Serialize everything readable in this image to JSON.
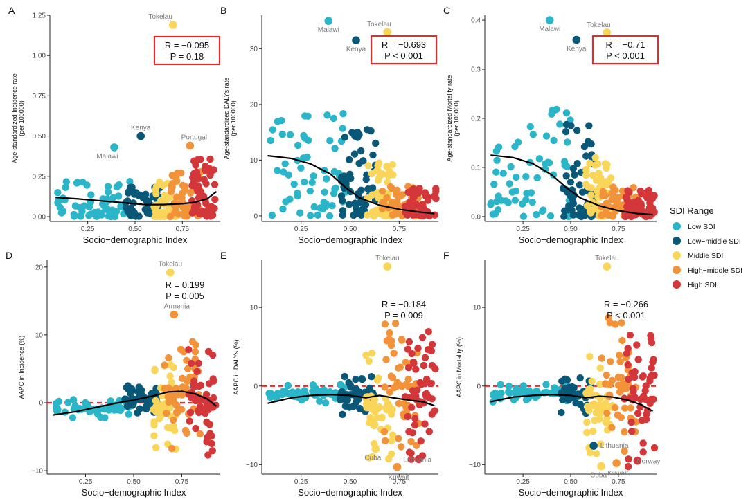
{
  "sdi_colors": {
    "Low SDI": "#2bb5c9",
    "Low−middle SDI": "#0a5878",
    "Middle SDI": "#f9d55a",
    "High−middle SDI": "#f39339",
    "High SDI": "#d3373a"
  },
  "legend": {
    "title": "SDI Range",
    "items": [
      "Low SDI",
      "Low−middle SDI",
      "Middle SDI",
      "High−middle SDI",
      "High SDI"
    ]
  },
  "chart_data": [
    {
      "panel": "A",
      "type": "scatter",
      "xlabel": "Socio−demographic Index",
      "ylabel": [
        "Age-standardized Incidence rate",
        "(per 100000)"
      ],
      "xlim": [
        0.05,
        0.95
      ],
      "ylim": [
        -0.03,
        1.25
      ],
      "xticks": [
        0.25,
        0.5,
        0.75
      ],
      "xtick_labels": [
        "0.25",
        "0.50",
        "0.75"
      ],
      "yticks": [
        0,
        0.25,
        0.5,
        0.75,
        1.0,
        1.25
      ],
      "ytick_labels": [
        "0.00",
        "0.25",
        "0.50",
        "0.75",
        "1.00",
        "1.25"
      ],
      "stats": [
        "R = −0.095",
        "P = 0.18"
      ],
      "stats_boxed": true,
      "baseline": null,
      "trend": [
        [
          0.08,
          0.12
        ],
        [
          0.2,
          0.11
        ],
        [
          0.35,
          0.095
        ],
        [
          0.45,
          0.085
        ],
        [
          0.55,
          0.075
        ],
        [
          0.65,
          0.075
        ],
        [
          0.75,
          0.08
        ],
        [
          0.82,
          0.09
        ],
        [
          0.88,
          0.11
        ],
        [
          0.93,
          0.155
        ]
      ],
      "highlight": [
        {
          "label": "Tokelau",
          "x": 0.7,
          "y": 1.19,
          "cat": "Middle SDI"
        },
        {
          "label": "Kenya",
          "x": 0.53,
          "y": 0.5,
          "cat": "Low−middle SDI"
        },
        {
          "label": "Malawi",
          "x": 0.39,
          "y": 0.43,
          "cat": "Low SDI"
        },
        {
          "label": "Portugal",
          "x": 0.79,
          "y": 0.44,
          "cat": "High−middle SDI"
        }
      ],
      "clusters": [
        {
          "cat": "Low SDI",
          "x": [
            0.08,
            0.48
          ],
          "y": [
            0.0,
            0.22
          ],
          "n": 60
        },
        {
          "cat": "Low−middle SDI",
          "x": [
            0.45,
            0.63
          ],
          "y": [
            0.0,
            0.2
          ],
          "n": 55
        },
        {
          "cat": "Middle SDI",
          "x": [
            0.6,
            0.72
          ],
          "y": [
            0.0,
            0.22
          ],
          "n": 50
        },
        {
          "cat": "High−middle SDI",
          "x": [
            0.68,
            0.85
          ],
          "y": [
            0.0,
            0.28
          ],
          "n": 50
        },
        {
          "cat": "High SDI",
          "x": [
            0.8,
            0.93
          ],
          "y": [
            0.0,
            0.36
          ],
          "n": 55
        }
      ]
    },
    {
      "panel": "B",
      "type": "scatter",
      "xlabel": "Socio−demographic Index",
      "ylabel": [
        "Age-standardized DALYs rate",
        "(per 100000)"
      ],
      "xlim": [
        0.05,
        0.95
      ],
      "ylim": [
        -1,
        36
      ],
      "xticks": [
        0.25,
        0.5,
        0.75
      ],
      "xtick_labels": [
        "0.25",
        "0.50",
        "0.75"
      ],
      "yticks": [
        0,
        10,
        20,
        30
      ],
      "ytick_labels": [
        "0",
        "10",
        "20",
        "30"
      ],
      "stats": [
        "R = −0.693",
        "P < 0.001"
      ],
      "stats_boxed": true,
      "baseline": null,
      "trend": [
        [
          0.08,
          10.8
        ],
        [
          0.2,
          10.3
        ],
        [
          0.3,
          9.3
        ],
        [
          0.4,
          7.5
        ],
        [
          0.48,
          5.0
        ],
        [
          0.55,
          3.2
        ],
        [
          0.65,
          1.9
        ],
        [
          0.75,
          1.2
        ],
        [
          0.85,
          0.7
        ],
        [
          0.93,
          0.4
        ]
      ],
      "highlight": [
        {
          "label": "Malawi",
          "x": 0.39,
          "y": 35.0,
          "cat": "Low SDI"
        },
        {
          "label": "Tokelau",
          "x": 0.69,
          "y": 33.0,
          "cat": "Middle SDI"
        },
        {
          "label": "Kenya",
          "x": 0.53,
          "y": 31.5,
          "cat": "Low−middle SDI"
        }
      ],
      "clusters": [
        {
          "cat": "Low SDI",
          "x": [
            0.08,
            0.5
          ],
          "y": [
            0.0,
            19
          ],
          "n": 60
        },
        {
          "cat": "Low−middle SDI",
          "x": [
            0.45,
            0.63
          ],
          "y": [
            0.0,
            16
          ],
          "n": 55
        },
        {
          "cat": "Middle SDI",
          "x": [
            0.58,
            0.72
          ],
          "y": [
            0.0,
            10
          ],
          "n": 50
        },
        {
          "cat": "High−middle SDI",
          "x": [
            0.66,
            0.85
          ],
          "y": [
            0.0,
            5.5
          ],
          "n": 50
        },
        {
          "cat": "High SDI",
          "x": [
            0.78,
            0.94
          ],
          "y": [
            0.0,
            5
          ],
          "n": 55
        }
      ]
    },
    {
      "panel": "C",
      "type": "scatter",
      "xlabel": "Socio−demographic Index",
      "ylabel": [
        "Age-standardized Mortality rate",
        "(per 100000)"
      ],
      "xlim": [
        0.05,
        0.95
      ],
      "ylim": [
        -0.01,
        0.41
      ],
      "xticks": [
        0.25,
        0.5,
        0.75
      ],
      "xtick_labels": [
        "0.25",
        "0.50",
        "0.75"
      ],
      "yticks": [
        0,
        0.1,
        0.2,
        0.3,
        0.4
      ],
      "ytick_labels": [
        "0.0",
        "0.1",
        "0.2",
        "0.3",
        "0.4"
      ],
      "stats": [
        "R = −0.71",
        "P < 0.001"
      ],
      "stats_boxed": true,
      "baseline": null,
      "trend": [
        [
          0.08,
          0.125
        ],
        [
          0.2,
          0.12
        ],
        [
          0.3,
          0.108
        ],
        [
          0.4,
          0.085
        ],
        [
          0.48,
          0.058
        ],
        [
          0.55,
          0.038
        ],
        [
          0.65,
          0.022
        ],
        [
          0.75,
          0.012
        ],
        [
          0.85,
          0.006
        ],
        [
          0.93,
          0.004
        ]
      ],
      "highlight": [
        {
          "label": "Malawi",
          "x": 0.39,
          "y": 0.4,
          "cat": "Low SDI"
        },
        {
          "label": "Tokelau",
          "x": 0.69,
          "y": 0.375,
          "cat": "Middle SDI"
        },
        {
          "label": "Kenya",
          "x": 0.53,
          "y": 0.36,
          "cat": "Low−middle SDI"
        }
      ],
      "clusters": [
        {
          "cat": "Low SDI",
          "x": [
            0.08,
            0.5
          ],
          "y": [
            0.0,
            0.22
          ],
          "n": 60
        },
        {
          "cat": "Low−middle SDI",
          "x": [
            0.45,
            0.63
          ],
          "y": [
            0.0,
            0.19
          ],
          "n": 55
        },
        {
          "cat": "Middle SDI",
          "x": [
            0.58,
            0.72
          ],
          "y": [
            0.0,
            0.12
          ],
          "n": 50
        },
        {
          "cat": "High−middle SDI",
          "x": [
            0.66,
            0.85
          ],
          "y": [
            0.0,
            0.06
          ],
          "n": 50
        },
        {
          "cat": "High SDI",
          "x": [
            0.78,
            0.94
          ],
          "y": [
            0.0,
            0.055
          ],
          "n": 55
        }
      ]
    },
    {
      "panel": "D",
      "type": "scatter",
      "xlabel": "Socio−demographic Index",
      "ylabel": [
        "AAPC in Incidence (%)"
      ],
      "xlim": [
        0.05,
        0.95
      ],
      "ylim": [
        -10.5,
        21
      ],
      "xticks": [
        0.25,
        0.5,
        0.75
      ],
      "xtick_labels": [
        "0.25",
        "0.50",
        "0.75"
      ],
      "yticks": [
        -10,
        0,
        10,
        20
      ],
      "ytick_labels": [
        "−10",
        "0",
        "10",
        "20"
      ],
      "stats": [
        "R = 0.199",
        "P = 0.005"
      ],
      "stats_boxed": false,
      "baseline": 0,
      "trend": [
        [
          0.08,
          -1.8
        ],
        [
          0.2,
          -1.3
        ],
        [
          0.3,
          -0.7
        ],
        [
          0.4,
          -0.1
        ],
        [
          0.5,
          0.4
        ],
        [
          0.6,
          1.0
        ],
        [
          0.68,
          1.6
        ],
        [
          0.75,
          1.7
        ],
        [
          0.82,
          1.3
        ],
        [
          0.88,
          0.6
        ],
        [
          0.93,
          -0.5
        ]
      ],
      "highlight": [
        {
          "label": "Tokelau",
          "x": 0.69,
          "y": 19.2,
          "cat": "Middle SDI"
        },
        {
          "label": "Armenia",
          "x": 0.71,
          "y": 13.0,
          "cat": "High−middle SDI"
        }
      ],
      "clusters": [
        {
          "cat": "Low SDI",
          "x": [
            0.08,
            0.48
          ],
          "y": [
            -2.3,
            0.5
          ],
          "n": 60
        },
        {
          "cat": "Low−middle SDI",
          "x": [
            0.45,
            0.63
          ],
          "y": [
            -1.5,
            2.5
          ],
          "n": 55
        },
        {
          "cat": "Middle SDI",
          "x": [
            0.6,
            0.72
          ],
          "y": [
            -8,
            6
          ],
          "n": 50
        },
        {
          "cat": "High−middle SDI",
          "x": [
            0.66,
            0.85
          ],
          "y": [
            -7,
            9.3
          ],
          "n": 50
        },
        {
          "cat": "High SDI",
          "x": [
            0.78,
            0.93
          ],
          "y": [
            -8,
            8.6
          ],
          "n": 55
        }
      ]
    },
    {
      "panel": "E",
      "type": "scatter",
      "xlabel": "Socio−demographic Index",
      "ylabel": [
        "AAPC in DALYs (%)"
      ],
      "xlim": [
        0.05,
        0.95
      ],
      "ylim": [
        -11.2,
        16
      ],
      "xticks": [
        0.25,
        0.5,
        0.75
      ],
      "xtick_labels": [
        "0.25",
        "0.50",
        "0.75"
      ],
      "yticks": [
        -10,
        0,
        10
      ],
      "ytick_labels": [
        "−10",
        "0",
        "10"
      ],
      "stats": [
        "R = −0.184",
        "P = 0.009"
      ],
      "stats_boxed": false,
      "baseline": 0,
      "trend": [
        [
          0.08,
          -2.2
        ],
        [
          0.2,
          -1.5
        ],
        [
          0.3,
          -1.2
        ],
        [
          0.4,
          -1.1
        ],
        [
          0.5,
          -1.2
        ],
        [
          0.58,
          -1.5
        ],
        [
          0.65,
          -1.2
        ],
        [
          0.72,
          -1.5
        ],
        [
          0.8,
          -1.8
        ],
        [
          0.87,
          -2.0
        ],
        [
          0.93,
          -2.5
        ]
      ],
      "highlight": [
        {
          "label": "Tokelau",
          "x": 0.69,
          "y": 15.2,
          "cat": "Middle SDI"
        },
        {
          "label": "Cuba",
          "x": 0.63,
          "y": -8.0,
          "cat": "Middle SDI"
        },
        {
          "label": "Lithuania",
          "x": 0.85,
          "y": -9.3,
          "cat": "High SDI"
        },
        {
          "label": "Kuwait",
          "x": 0.74,
          "y": -10.3,
          "cat": "High−middle SDI"
        }
      ],
      "clusters": [
        {
          "cat": "Low SDI",
          "x": [
            0.08,
            0.48
          ],
          "y": [
            -2.3,
            0.4
          ],
          "n": 60
        },
        {
          "cat": "Low−middle SDI",
          "x": [
            0.45,
            0.62
          ],
          "y": [
            -3.7,
            1.5
          ],
          "n": 55
        },
        {
          "cat": "Middle SDI",
          "x": [
            0.58,
            0.72
          ],
          "y": [
            -10.2,
            4.7
          ],
          "n": 50
        },
        {
          "cat": "High−middle SDI",
          "x": [
            0.66,
            0.85
          ],
          "y": [
            -9.8,
            9.7
          ],
          "n": 50
        },
        {
          "cat": "High SDI",
          "x": [
            0.78,
            0.94
          ],
          "y": [
            -10.3,
            7.3
          ],
          "n": 55
        }
      ]
    },
    {
      "panel": "F",
      "type": "scatter",
      "xlabel": "Socio−demographic Index",
      "ylabel": [
        "AAPC in Mortality (%)"
      ],
      "xlim": [
        0.05,
        0.95
      ],
      "ylim": [
        -11.2,
        16
      ],
      "xticks": [
        0.25,
        0.5,
        0.75
      ],
      "xtick_labels": [
        "0.25",
        "0.50",
        "0.75"
      ],
      "yticks": [
        -10,
        0,
        10
      ],
      "ytick_labels": [
        "−10",
        "0",
        "10"
      ],
      "stats": [
        "R = −0.266",
        "P < 0.001"
      ],
      "stats_boxed": false,
      "baseline": 0,
      "trend": [
        [
          0.08,
          -2.0
        ],
        [
          0.2,
          -1.4
        ],
        [
          0.3,
          -1.2
        ],
        [
          0.4,
          -1.1
        ],
        [
          0.5,
          -1.2
        ],
        [
          0.58,
          -1.5
        ],
        [
          0.65,
          -1.3
        ],
        [
          0.72,
          -1.4
        ],
        [
          0.8,
          -1.8
        ],
        [
          0.87,
          -2.4
        ],
        [
          0.93,
          -3.2
        ]
      ],
      "highlight": [
        {
          "label": "Tokelau",
          "x": 0.69,
          "y": 15.2,
          "cat": "Middle SDI"
        },
        {
          "label": "Lithuania",
          "x": 0.62,
          "y": -7.6,
          "cat": "Low−middle SDI"
        },
        {
          "label": "Norway",
          "x": 0.85,
          "y": -9.5,
          "cat": "High SDI"
        },
        {
          "label": "Cuba",
          "x": 0.66,
          "y": -10.2,
          "cat": "Middle SDI"
        },
        {
          "label": "Kuwait",
          "x": 0.74,
          "y": -9.8,
          "cat": "High−middle SDI"
        }
      ],
      "clusters": [
        {
          "cat": "Low SDI",
          "x": [
            0.08,
            0.48
          ],
          "y": [
            -2.2,
            0.4
          ],
          "n": 60
        },
        {
          "cat": "Low−middle SDI",
          "x": [
            0.45,
            0.62
          ],
          "y": [
            -3.7,
            1.4
          ],
          "n": 55
        },
        {
          "cat": "Middle SDI",
          "x": [
            0.58,
            0.72
          ],
          "y": [
            -9.5,
            4.5
          ],
          "n": 50
        },
        {
          "cat": "High−middle SDI",
          "x": [
            0.66,
            0.85
          ],
          "y": [
            -9,
            9.6
          ],
          "n": 50
        },
        {
          "cat": "High SDI",
          "x": [
            0.78,
            0.94
          ],
          "y": [
            -10.5,
            7.2
          ],
          "n": 55
        }
      ]
    }
  ]
}
